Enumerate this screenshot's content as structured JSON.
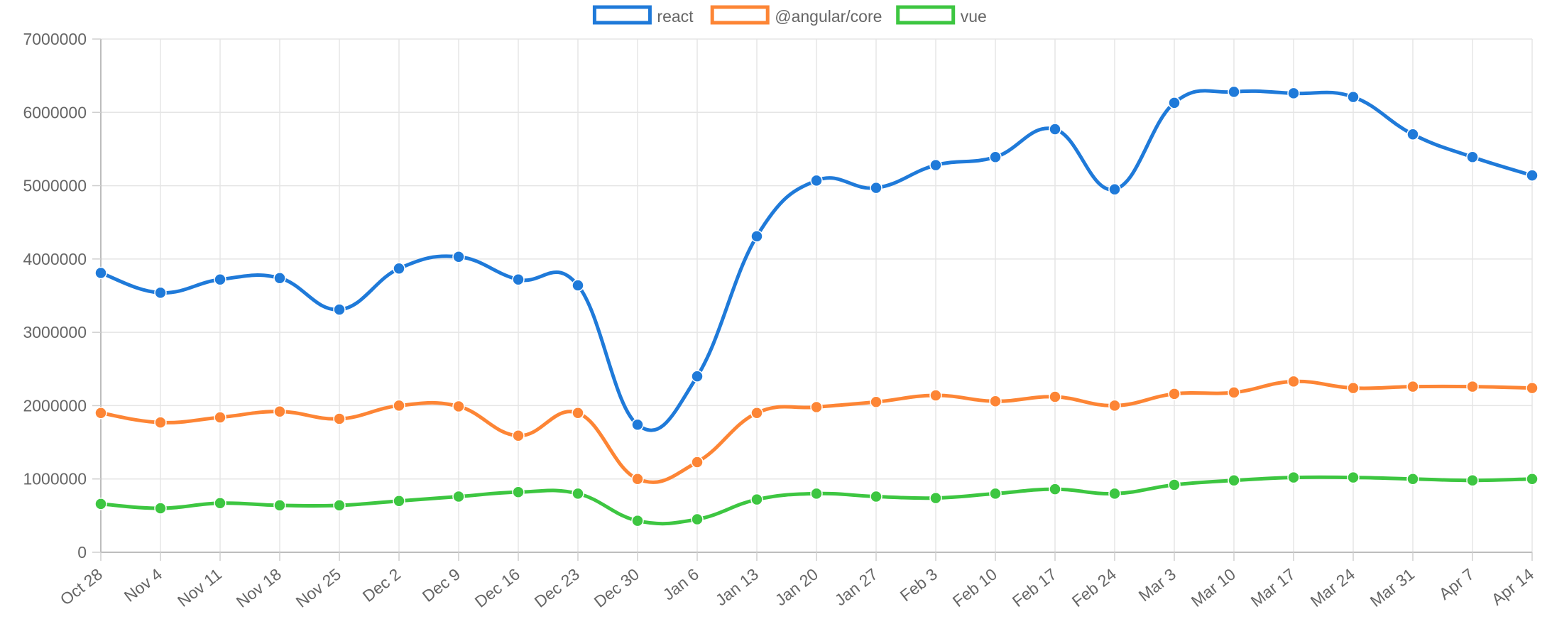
{
  "chart_data": {
    "type": "line",
    "title": "",
    "xlabel": "",
    "ylabel": "",
    "categories": [
      "Oct 28",
      "Nov 4",
      "Nov 11",
      "Nov 18",
      "Nov 25",
      "Dec 2",
      "Dec 9",
      "Dec 16",
      "Dec 23",
      "Dec 30",
      "Jan 6",
      "Jan 13",
      "Jan 20",
      "Jan 27",
      "Feb 3",
      "Feb 10",
      "Feb 17",
      "Feb 24",
      "Mar 3",
      "Mar 10",
      "Mar 17",
      "Mar 24",
      "Mar 31",
      "Apr 7",
      "Apr 14"
    ],
    "ylim": [
      0,
      7000000
    ],
    "yticks": [
      "0",
      "1000000",
      "2000000",
      "3000000",
      "4000000",
      "5000000",
      "6000000",
      "7000000"
    ],
    "grid": true,
    "legend_position": "top",
    "series": [
      {
        "name": "react",
        "color": "#1f7ad9",
        "values": [
          3810000,
          3540000,
          3720000,
          3740000,
          3310000,
          3870000,
          4030000,
          3720000,
          3640000,
          1740000,
          2400000,
          4310000,
          5070000,
          4970000,
          5280000,
          5390000,
          5770000,
          4950000,
          6130000,
          6280000,
          6260000,
          6210000,
          5700000,
          5390000,
          5140000
        ]
      },
      {
        "name": "@angular/core",
        "color": "#fd8535",
        "values": [
          1900000,
          1770000,
          1840000,
          1920000,
          1820000,
          2000000,
          1990000,
          1590000,
          1900000,
          1000000,
          1230000,
          1900000,
          1980000,
          2050000,
          2140000,
          2060000,
          2120000,
          2000000,
          2160000,
          2180000,
          2330000,
          2240000,
          2260000,
          2260000,
          2240000
        ]
      },
      {
        "name": "vue",
        "color": "#3dc641",
        "values": [
          660000,
          600000,
          670000,
          640000,
          640000,
          700000,
          760000,
          820000,
          800000,
          430000,
          450000,
          720000,
          800000,
          760000,
          740000,
          800000,
          860000,
          800000,
          920000,
          980000,
          1020000,
          1020000,
          1000000,
          980000,
          1000000
        ]
      }
    ]
  }
}
